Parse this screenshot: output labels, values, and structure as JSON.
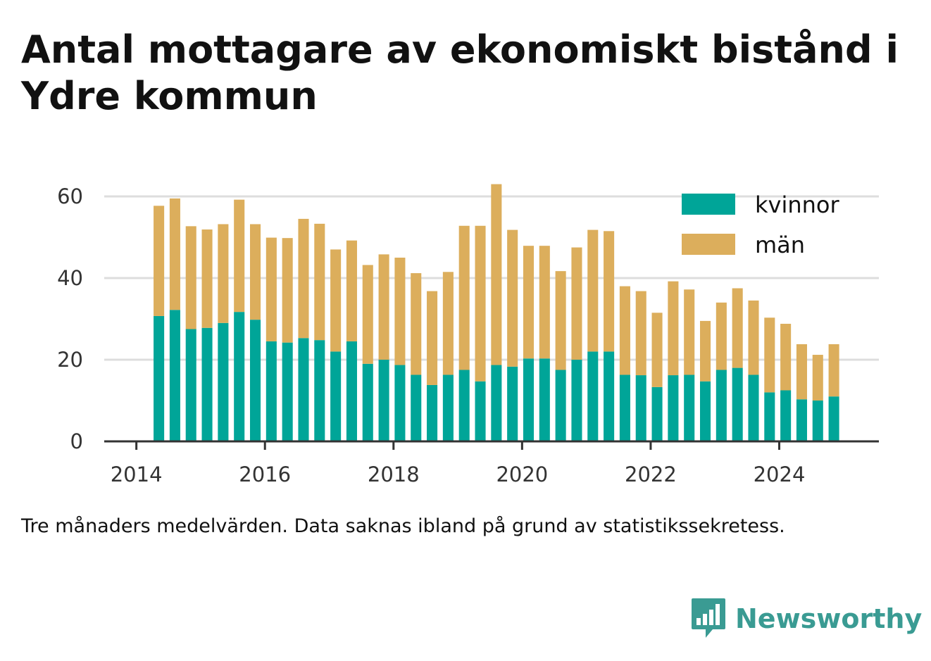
{
  "title": "Antal mottagare av ekonomiskt bistånd i Ydre kommun",
  "footnote": "Tre månaders medelvärden. Data saknas ibland på grund av statistikssekretess.",
  "brand": {
    "name": "Newsworthy",
    "color": "#3a9b93",
    "icon": "bar-chart-badge-icon"
  },
  "chart_data": {
    "type": "bar",
    "stacked": true,
    "x": [
      2014.35,
      2014.6,
      2014.85,
      2015.1,
      2015.35,
      2015.6,
      2015.85,
      2016.1,
      2016.35,
      2016.6,
      2016.85,
      2017.1,
      2017.35,
      2017.6,
      2017.85,
      2018.1,
      2018.35,
      2018.6,
      2018.85,
      2019.1,
      2019.35,
      2019.6,
      2019.85,
      2020.1,
      2020.35,
      2020.6,
      2020.85,
      2021.1,
      2021.35,
      2021.6,
      2021.85,
      2022.1,
      2022.35,
      2022.6,
      2022.85,
      2023.1,
      2023.35,
      2023.6,
      2023.85,
      2024.1,
      2024.35,
      2024.6,
      2024.85
    ],
    "series": [
      {
        "name": "kvinnor",
        "color": "#00a598",
        "values": [
          30.7,
          32.2,
          27.5,
          27.8,
          29.0,
          31.7,
          29.8,
          24.5,
          24.2,
          25.3,
          24.8,
          22.0,
          24.5,
          19.0,
          20.0,
          18.7,
          16.3,
          13.8,
          16.3,
          17.5,
          14.7,
          18.7,
          18.3,
          20.3,
          20.3,
          17.5,
          20.0,
          22.0,
          22.0,
          16.3,
          16.2,
          13.3,
          16.2,
          16.3,
          14.7,
          17.5,
          18.0,
          16.3,
          12.0,
          12.5,
          10.3,
          10.0,
          11.0
        ]
      },
      {
        "name": "män",
        "color": "#dcae5c",
        "values": [
          27.0,
          27.3,
          25.2,
          24.1,
          24.2,
          27.5,
          23.4,
          25.4,
          25.6,
          29.2,
          28.5,
          25.0,
          24.7,
          24.2,
          25.8,
          26.3,
          24.9,
          23.0,
          25.2,
          35.3,
          38.1,
          44.3,
          33.5,
          27.6,
          27.6,
          24.2,
          27.5,
          29.8,
          29.5,
          21.7,
          20.6,
          18.2,
          23.0,
          20.9,
          14.8,
          16.5,
          19.5,
          18.2,
          18.3,
          16.3,
          13.5,
          11.2,
          12.8
        ]
      }
    ],
    "xticks": [
      "2014",
      "2016",
      "2018",
      "2020",
      "2022",
      "2024"
    ],
    "xtick_values": [
      2014,
      2016,
      2018,
      2020,
      2022,
      2024
    ],
    "xlim": [
      2013.5,
      2025.55
    ],
    "yticks": [
      "0",
      "20",
      "40",
      "60"
    ],
    "ytick_values": [
      0,
      20,
      40,
      60
    ],
    "ylim": [
      0,
      65
    ],
    "grid": true,
    "legend_position": "top-right",
    "xlabel": "",
    "ylabel": ""
  }
}
